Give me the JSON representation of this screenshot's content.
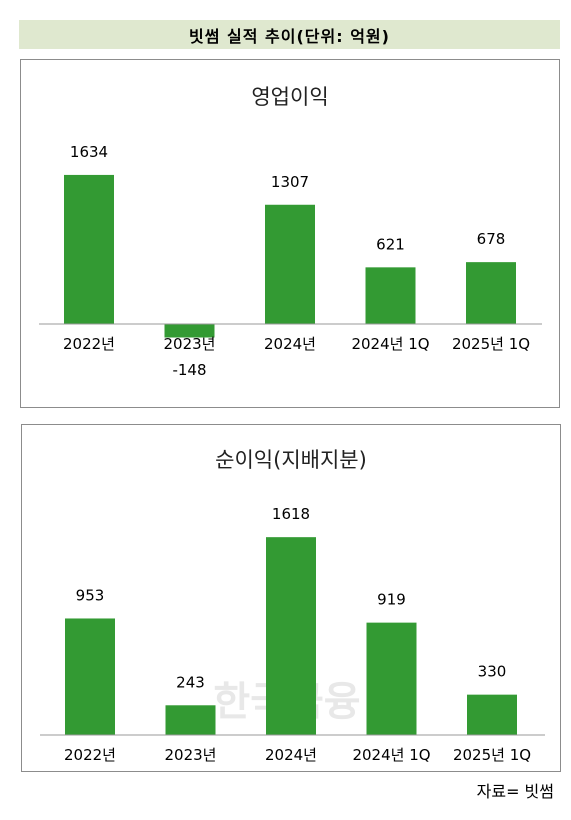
{
  "header": {
    "title": "빗썸 실적 추이(단위: 억원)"
  },
  "source": "자료= 빗썸",
  "watermark": "한국금융",
  "colors": {
    "bar": "#339a33",
    "header_bg": "#dfe8cf"
  },
  "chart_data": [
    {
      "type": "bar",
      "title": "영업이익",
      "categories": [
        "2022년",
        "2023년",
        "2024년",
        "2024년 1Q",
        "2025년 1Q"
      ],
      "values": [
        1634,
        -148,
        1307,
        621,
        678
      ],
      "ylim": [
        -300,
        1900
      ],
      "grid": false
    },
    {
      "type": "bar",
      "title": "순이익(지배지분)",
      "categories": [
        "2022년",
        "2023년",
        "2024년",
        "2024년 1Q",
        "2025년 1Q"
      ],
      "values": [
        953,
        243,
        1618,
        919,
        330
      ],
      "ylim": [
        0,
        1900
      ],
      "grid": false
    }
  ]
}
